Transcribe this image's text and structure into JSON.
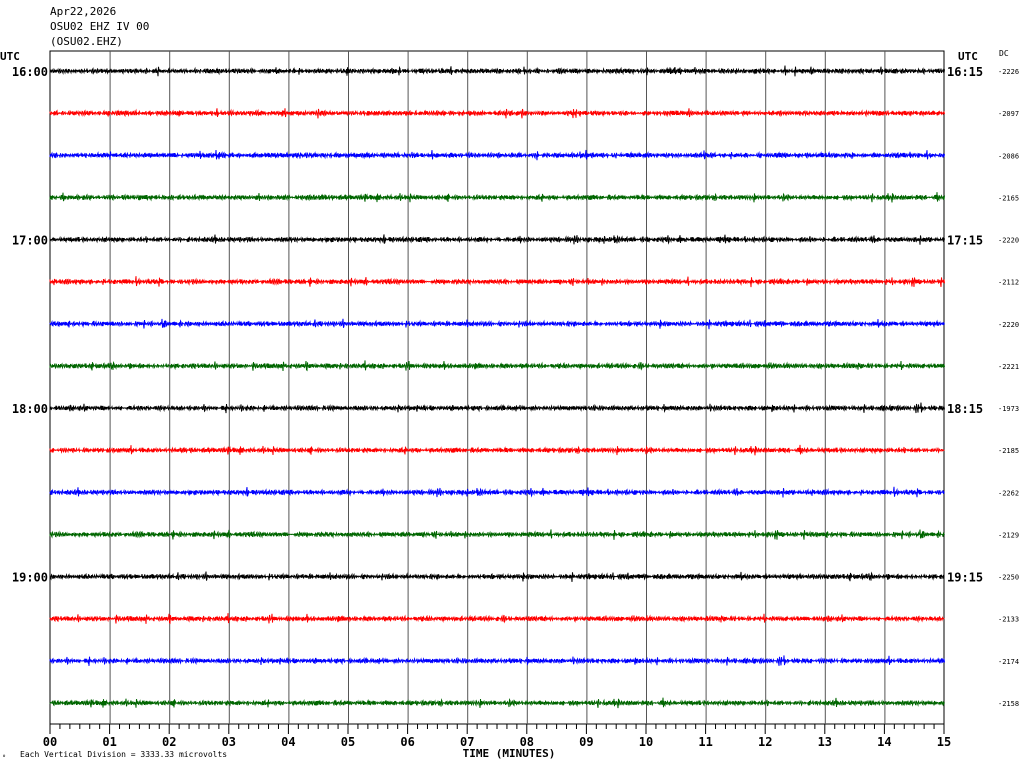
{
  "header": {
    "date": "Apr22,2026",
    "station": "OSU02 EHZ IV 00",
    "channel": "(OSU02.EHZ)"
  },
  "utc_left": "UTC",
  "utc_right": "UTC",
  "dc_label": "DC",
  "footer": {
    "scale_note": "Each Vertical Division = 3333.33 microvolts",
    "corner_mark": "∘"
  },
  "chart_data": {
    "type": "line",
    "title": "",
    "xlabel": "TIME (MINUTES)",
    "xlim": [
      0,
      15
    ],
    "x_ticks": [
      "00",
      "01",
      "02",
      "03",
      "04",
      "05",
      "06",
      "07",
      "08",
      "09",
      "10",
      "11",
      "12",
      "13",
      "14",
      "15"
    ],
    "trace_colors": [
      "#000000",
      "#ff0000",
      "#0000ff",
      "#006600"
    ],
    "grid": true,
    "hour_labels_left": [
      {
        "trace": 0,
        "label": "16:00"
      },
      {
        "trace": 4,
        "label": "17:00"
      },
      {
        "trace": 8,
        "label": "18:00"
      },
      {
        "trace": 12,
        "label": "19:00"
      }
    ],
    "hour_labels_right": [
      {
        "trace": 0,
        "label": "16:15"
      },
      {
        "trace": 4,
        "label": "17:15"
      },
      {
        "trace": 8,
        "label": "18:15"
      },
      {
        "trace": 12,
        "label": "19:15"
      }
    ],
    "dc_values": [
      "-2226",
      "-2097",
      "-2086",
      "-2165",
      "-2220",
      "-2112",
      "-2220",
      "-2221",
      "-1973",
      "-2185",
      "-2262",
      "-2129",
      "-2250",
      "-2133",
      "-2174",
      "-2158"
    ]
  }
}
